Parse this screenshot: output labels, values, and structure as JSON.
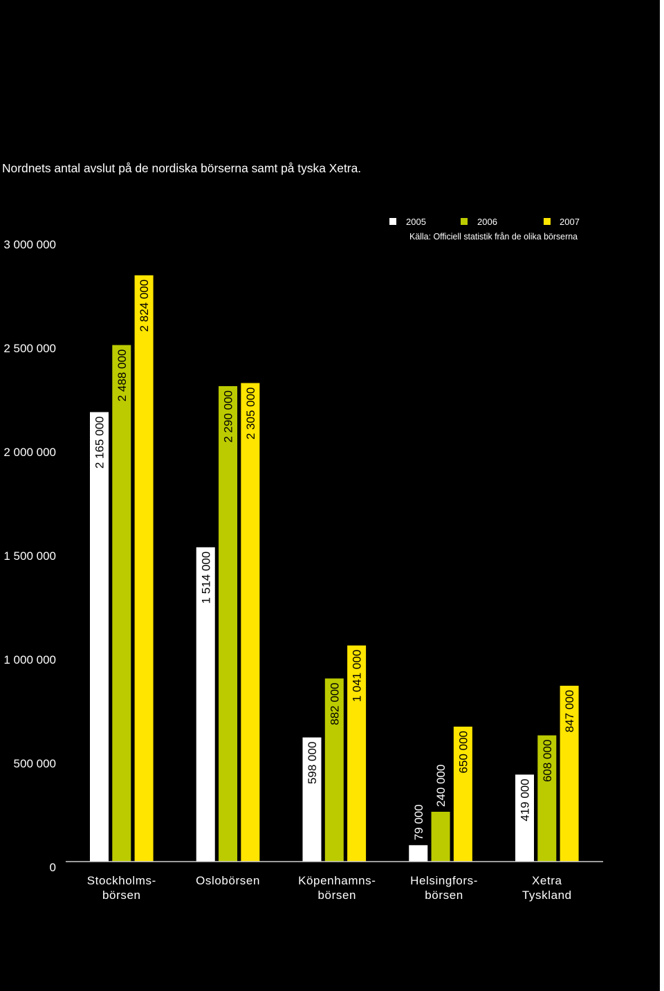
{
  "colors": {
    "background": "#000000",
    "axis_line": "#cfcfcf",
    "label_on_bar": "#000000",
    "label_off_bar": "#ffffff",
    "page_edge": "#ffffff"
  },
  "chart_data": {
    "type": "bar",
    "title": "Nordnets antal avslut på de nordiska börserna samt på tyska Xetra.",
    "source": "Källa: Officiell statistik från de olika börserna",
    "xlabel": "",
    "ylabel": "",
    "categories": [
      "Stockholms-\nbörsen",
      "Oslobörsen",
      "Köpenhamns-\nbörsen",
      "Helsingfors-\nbörsen",
      "Xetra\nTyskland"
    ],
    "series": [
      {
        "name": "2005",
        "color": "#ffffff",
        "values": [
          2165000,
          1514000,
          598000,
          79000,
          419000
        ],
        "labels": [
          "2 165 000",
          "1 514 000",
          "598 000",
          "79 000",
          "419 000"
        ]
      },
      {
        "name": "2006",
        "color": "#bccb00",
        "values": [
          2488000,
          2290000,
          882000,
          240000,
          608000
        ],
        "labels": [
          "2 488 000",
          "2 290 000",
          "882 000",
          "240 000",
          "608 000"
        ]
      },
      {
        "name": "2007",
        "color": "#ffe500",
        "values": [
          2824000,
          2305000,
          1041000,
          650000,
          847000
        ],
        "labels": [
          "2 824 000",
          "2 305 000",
          "1 041 000",
          "650 000",
          "847 000"
        ]
      }
    ],
    "ylim": [
      0,
      3000000
    ],
    "yticks": [
      0,
      500000,
      1000000,
      1500000,
      2000000,
      2500000,
      3000000
    ],
    "ytick_labels": [
      "0",
      "500 000",
      "1 000 000",
      "1 500 000",
      "2 000 000",
      "2 500 000",
      "3 000 000"
    ],
    "grid": false,
    "legend_position": "top-right"
  }
}
